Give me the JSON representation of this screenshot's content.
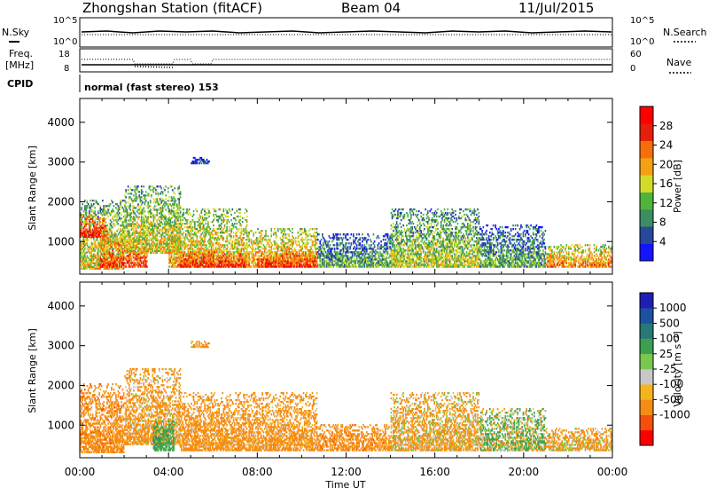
{
  "header": {
    "station": "Zhongshan Station (fitACF)",
    "beam": "Beam 04",
    "date": "11/Jul/2015"
  },
  "noise_panel": {
    "left_label": "N.Sky",
    "right_label": "N.Search",
    "left_ticks": [
      "10^5",
      "10^0"
    ],
    "right_ticks": [
      "10^5",
      "10^0"
    ]
  },
  "freq_panel": {
    "left_label_1": "Freq.",
    "left_label_2": "[MHz]",
    "right_label": "Nave",
    "left_ticks": [
      "18",
      "8"
    ],
    "right_ticks": [
      "60",
      "0"
    ]
  },
  "cpid": {
    "label": "CPID",
    "value": "normal (fast stereo) 153"
  },
  "colors": {
    "power": [
      "#1414ff",
      "#28489c",
      "#3c8c64",
      "#50b43c",
      "#d2dc28",
      "#f5a014",
      "#f56e0a",
      "#e61e0a",
      "#ff0000"
    ],
    "velocity": [
      "#ff0000",
      "#f5500a",
      "#f58c14",
      "#f5b41e",
      "#c8c8c8",
      "#78c850",
      "#3ca050",
      "#287878",
      "#1e50a0",
      "#1e1eb4"
    ]
  },
  "chart_data": [
    {
      "type": "heatmap",
      "name": "power-panel",
      "xlabel": "",
      "ylabel": "Slant Range [km]",
      "xlim": [
        "00:00",
        "24:00"
      ],
      "ylim": [
        180,
        4600
      ],
      "yticks": [
        1000,
        2000,
        3000,
        4000
      ],
      "colorbar": {
        "label": "Power [dB]",
        "range": [
          0,
          32
        ],
        "ticks": [
          4,
          8,
          12,
          16,
          20,
          24,
          28
        ]
      },
      "echo_regions": [
        {
          "start_h": 0.0,
          "end_h": 2.0,
          "range_low": 300,
          "range_high": 2050,
          "power_db": 18
        },
        {
          "start_h": 0.0,
          "end_h": 1.2,
          "range_low": 1100,
          "range_high": 1650,
          "power_db": 28
        },
        {
          "start_h": 0.9,
          "end_h": 3.0,
          "range_low": 350,
          "range_high": 1200,
          "power_db": 26
        },
        {
          "start_h": 2.0,
          "end_h": 4.5,
          "range_low": 700,
          "range_high": 2400,
          "power_db": 18
        },
        {
          "start_h": 4.0,
          "end_h": 7.5,
          "range_low": 350,
          "range_high": 1800,
          "power_db": 20
        },
        {
          "start_h": 4.5,
          "end_h": 7.5,
          "range_low": 350,
          "range_high": 750,
          "power_db": 28
        },
        {
          "start_h": 7.5,
          "end_h": 10.7,
          "range_low": 350,
          "range_high": 1300,
          "power_db": 22
        },
        {
          "start_h": 8.0,
          "end_h": 10.7,
          "range_low": 350,
          "range_high": 700,
          "power_db": 28
        },
        {
          "start_h": 10.7,
          "end_h": 14.0,
          "range_low": 350,
          "range_high": 1200,
          "power_db": 12
        },
        {
          "start_h": 14.0,
          "end_h": 18.0,
          "range_low": 350,
          "range_high": 1800,
          "power_db": 16
        },
        {
          "start_h": 18.0,
          "end_h": 21.0,
          "range_low": 350,
          "range_high": 1400,
          "power_db": 12
        },
        {
          "start_h": 21.0,
          "end_h": 24.0,
          "range_low": 350,
          "range_high": 900,
          "power_db": 22
        },
        {
          "start_h": 5.0,
          "end_h": 5.8,
          "range_low": 2950,
          "range_high": 3100,
          "power_db": 6
        }
      ]
    },
    {
      "type": "heatmap",
      "name": "velocity-panel",
      "xlabel": "Time UT",
      "ylabel": "Slant Range [km]",
      "xlim": [
        "00:00",
        "24:00"
      ],
      "xticks": [
        "00:00",
        "04:00",
        "08:00",
        "12:00",
        "16:00",
        "20:00",
        "00:00"
      ],
      "ylim": [
        180,
        4600
      ],
      "yticks": [
        1000,
        2000,
        3000,
        4000
      ],
      "colorbar": {
        "label": "Velocity [m s⁻¹]",
        "ticks": [
          "1000",
          "500",
          "100",
          "25",
          "-25",
          "-100",
          "-500",
          "-1000"
        ]
      },
      "echo_regions": [
        {
          "start_h": 0.0,
          "end_h": 2.0,
          "range_low": 300,
          "range_high": 2050,
          "velocity": -300
        },
        {
          "start_h": 2.0,
          "end_h": 4.5,
          "range_low": 500,
          "range_high": 2400,
          "velocity": -200
        },
        {
          "start_h": 3.3,
          "end_h": 4.2,
          "range_low": 350,
          "range_high": 1100,
          "velocity": 300
        },
        {
          "start_h": 4.5,
          "end_h": 10.7,
          "range_low": 350,
          "range_high": 1800,
          "velocity": -250
        },
        {
          "start_h": 10.7,
          "end_h": 14.0,
          "range_low": 350,
          "range_high": 1000,
          "velocity": -300
        },
        {
          "start_h": 14.0,
          "end_h": 18.0,
          "range_low": 350,
          "range_high": 1800,
          "velocity": -150
        },
        {
          "start_h": 18.0,
          "end_h": 21.0,
          "range_low": 350,
          "range_high": 1400,
          "velocity": 50
        },
        {
          "start_h": 21.0,
          "end_h": 24.0,
          "range_low": 350,
          "range_high": 900,
          "velocity": -150
        },
        {
          "start_h": 5.0,
          "end_h": 5.8,
          "range_low": 2950,
          "range_high": 3100,
          "velocity": -200
        }
      ]
    }
  ]
}
